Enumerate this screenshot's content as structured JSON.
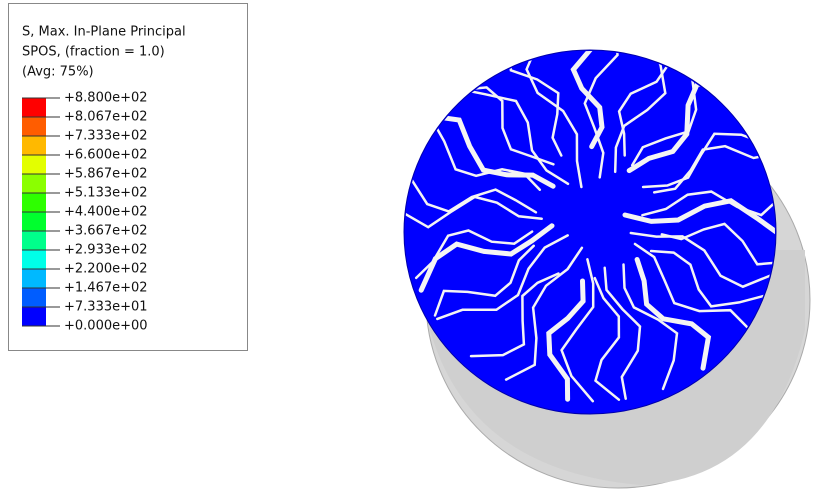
{
  "legend": {
    "title": [
      "S, Max. In-Plane Principal",
      "SPOS, (fraction = 1.0)",
      "(Avg: 75%)"
    ],
    "labels": [
      "+8.800e+02",
      "+8.067e+02",
      "+7.333e+02",
      "+6.600e+02",
      "+5.867e+02",
      "+5.133e+02",
      "+4.400e+02",
      "+3.667e+02",
      "+2.933e+02",
      "+2.200e+02",
      "+1.467e+02",
      "+7.333e+01",
      "+0.000e+00"
    ],
    "colors": [
      "#ff0000",
      "#ff5d00",
      "#ffb900",
      "#e3ff00",
      "#8bff00",
      "#2eff00",
      "#00ff2e",
      "#00ff8b",
      "#00ffe8",
      "#00b9ff",
      "#005dff",
      "#0000ff"
    ]
  }
}
